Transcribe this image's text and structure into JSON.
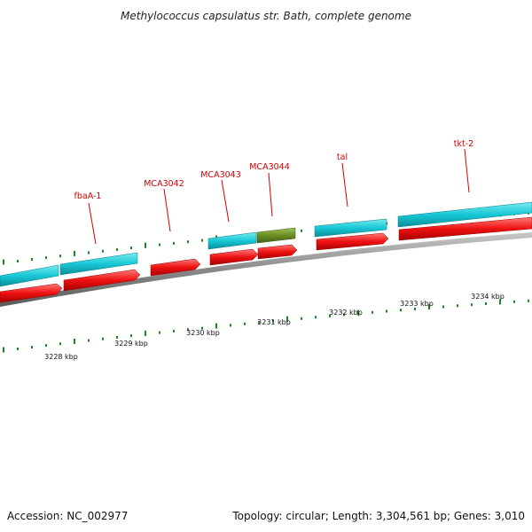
{
  "title": "Methylococcus capsulatus str. Bath, complete genome",
  "footer": {
    "accession": "Accession: NC_002977",
    "summary": "Topology: circular; Length: 3,304,561 bp; Genes: 3,010"
  },
  "colors": {
    "background": "#ffffff",
    "backbone": "#8a8a8a",
    "cds": "#ee1111",
    "gene": "#18c8d6",
    "alt_gene": "#6b8e23",
    "tick": "#1a8a1a",
    "label": "#d40000"
  },
  "kbp_labels": [
    "3228 kbp",
    "3229 kbp",
    "3230 kbp",
    "3231 kbp",
    "3232 kbp",
    "3233 kbp",
    "3234 kbp"
  ],
  "gene_labels": [
    "fbaA-1",
    "MCA3042",
    "MCA3043",
    "MCA3044",
    "tal",
    "tkt-2"
  ]
}
